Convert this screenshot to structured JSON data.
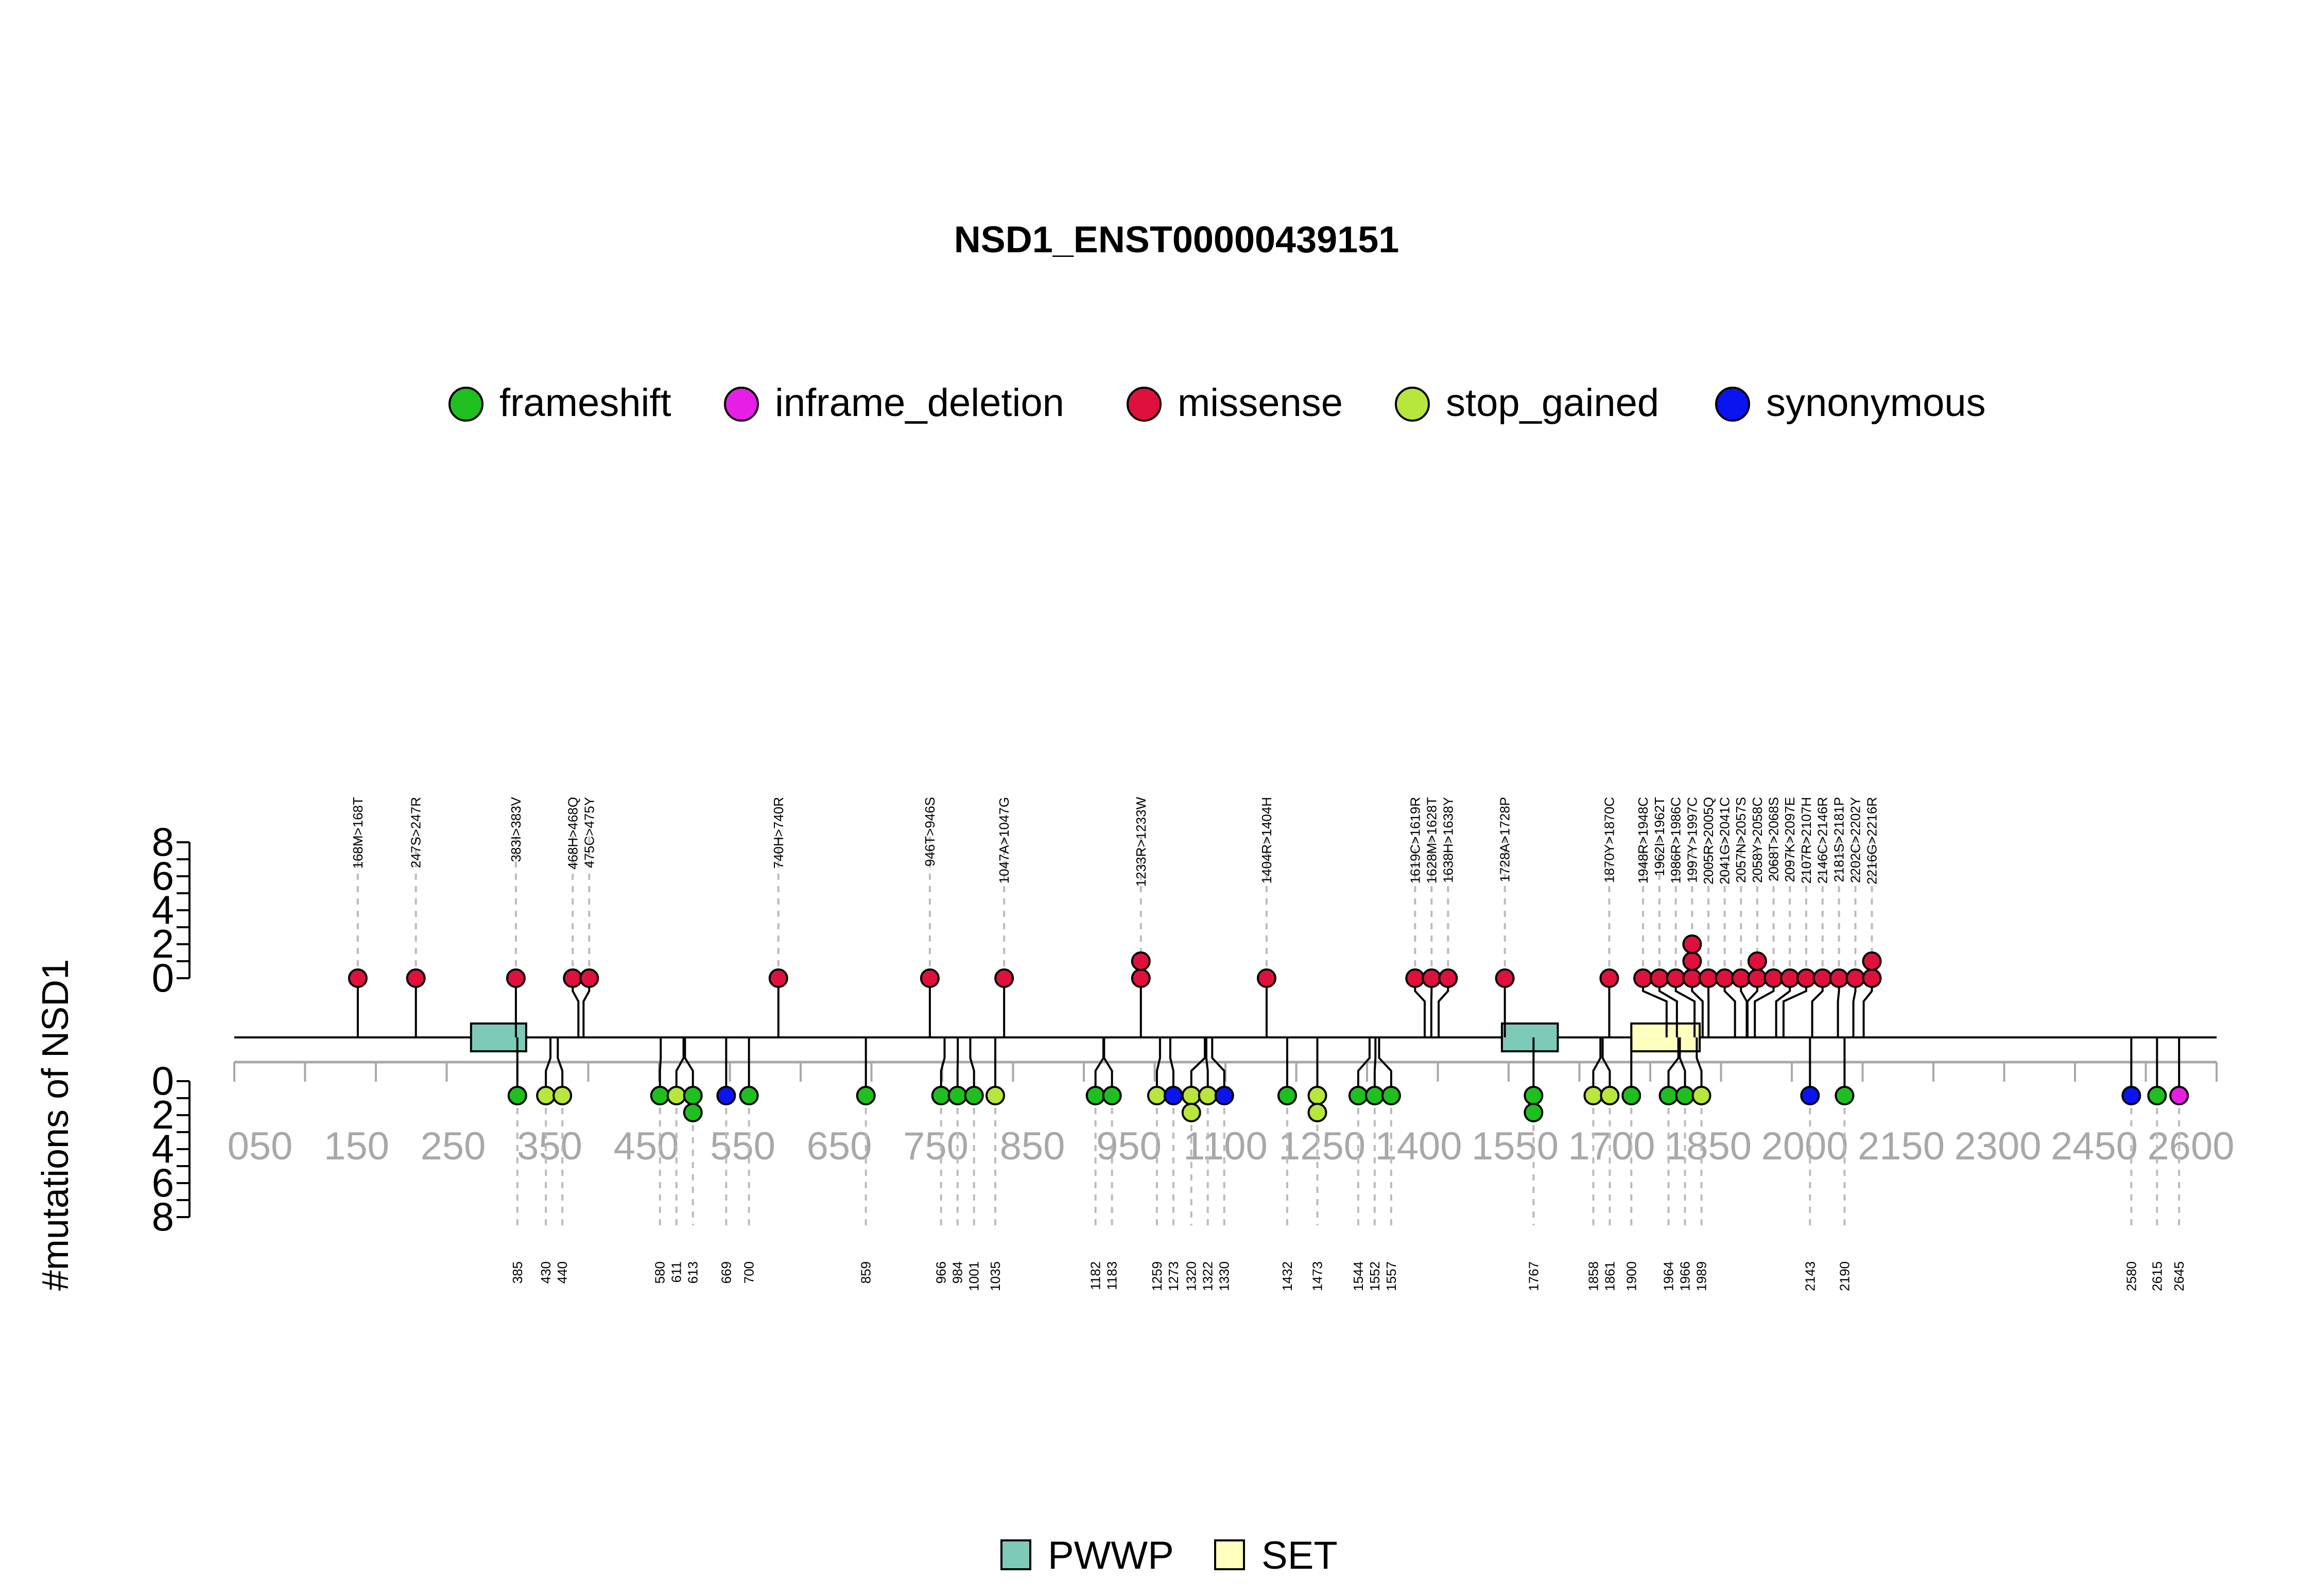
{
  "chart_data": {
    "type": "lollipop",
    "title": "NSD1_ENST00000439151",
    "ylabel": "#mutations of NSD1",
    "colors": {
      "frameshift": "#1fbf1f",
      "inframe_deletion": "#e61ee6",
      "missense": "#e0103c",
      "stop_gained": "#b7e63c",
      "synonymous": "#0a14f0",
      "PWWP": "#7ecab8",
      "SET": "#ffffbe",
      "axis_gray": "#a8a8a8"
    },
    "legend": {
      "placement": "top",
      "entries": [
        "frameshift",
        "inframe_deletion",
        "missense",
        "stop_gained",
        "synonymous"
      ]
    },
    "domain_legend": {
      "placement": "bottom",
      "entries": [
        "PWWP",
        "SET"
      ]
    },
    "domains": [
      {
        "name": "PWWP",
        "start": 322,
        "end": 397
      },
      {
        "name": "PWWP",
        "start": 1724,
        "end": 1800
      },
      {
        "name": "SET",
        "start": 1900,
        "end": 1993
      }
    ],
    "protein_length": 2696,
    "x_ticks_shown": [
      "050",
      "150",
      "250",
      "350",
      "450",
      "550",
      "650",
      "750",
      "850",
      "950",
      "1100",
      "1250",
      "1400",
      "1550",
      "1700",
      "1850",
      "2000",
      "2150",
      "2300",
      "2450",
      "2600"
    ],
    "y_top": {
      "ticks": [
        "0",
        "2",
        "4",
        "6",
        "8"
      ],
      "range": [
        0,
        8
      ]
    },
    "y_bottom": {
      "ticks": [
        "0",
        "2",
        "4",
        "6",
        "8"
      ],
      "range": [
        0,
        8
      ]
    },
    "top_mutations": [
      {
        "label": "168M>168T",
        "pos": 168,
        "types": [
          "missense"
        ]
      },
      {
        "label": "247S>247R",
        "pos": 247,
        "types": [
          "missense"
        ]
      },
      {
        "label": "383I>383V",
        "pos": 383,
        "types": [
          "missense"
        ]
      },
      {
        "label": "468H>468Q",
        "pos": 468,
        "types": [
          "missense"
        ]
      },
      {
        "label": "475C>475Y",
        "pos": 475,
        "types": [
          "missense"
        ]
      },
      {
        "label": "740H>740R",
        "pos": 740,
        "types": [
          "missense"
        ]
      },
      {
        "label": "946T>946S",
        "pos": 946,
        "types": [
          "missense"
        ]
      },
      {
        "label": "1047A>1047G",
        "pos": 1047,
        "types": [
          "missense"
        ]
      },
      {
        "label": "1233R>1233W",
        "pos": 1233,
        "types": [
          "missense",
          "missense"
        ]
      },
      {
        "label": "1404R>1404H",
        "pos": 1404,
        "types": [
          "missense"
        ]
      },
      {
        "label": "1619C>1619R",
        "pos": 1619,
        "types": [
          "missense"
        ]
      },
      {
        "label": "1628M>1628T",
        "pos": 1628,
        "types": [
          "missense"
        ]
      },
      {
        "label": "1638H>1638Y",
        "pos": 1638,
        "types": [
          "missense"
        ]
      },
      {
        "label": "1728A>1728P",
        "pos": 1728,
        "types": [
          "missense"
        ]
      },
      {
        "label": "1870Y>1870C",
        "pos": 1870,
        "types": [
          "missense"
        ]
      },
      {
        "label": "1948R>1948C",
        "pos": 1948,
        "types": [
          "missense"
        ]
      },
      {
        "label": "1962I>1962T",
        "pos": 1962,
        "types": [
          "missense"
        ]
      },
      {
        "label": "1986R>1986C",
        "pos": 1986,
        "types": [
          "missense"
        ]
      },
      {
        "label": "1997Y>1997C",
        "pos": 1997,
        "types": [
          "missense",
          "missense",
          "missense"
        ]
      },
      {
        "label": "2005R>2005Q",
        "pos": 2005,
        "types": [
          "missense"
        ]
      },
      {
        "label": "2041G>2041C",
        "pos": 2041,
        "types": [
          "missense"
        ]
      },
      {
        "label": "2057N>2057S",
        "pos": 2057,
        "types": [
          "missense"
        ]
      },
      {
        "label": "2058Y>2058C",
        "pos": 2058,
        "types": [
          "missense",
          "missense"
        ]
      },
      {
        "label": "2068T>2068S",
        "pos": 2068,
        "types": [
          "missense"
        ]
      },
      {
        "label": "2097K>2097E",
        "pos": 2097,
        "types": [
          "missense"
        ]
      },
      {
        "label": "2107R>2107H",
        "pos": 2107,
        "types": [
          "missense"
        ]
      },
      {
        "label": "2146C>2146R",
        "pos": 2146,
        "types": [
          "missense"
        ]
      },
      {
        "label": "2181S>2181P",
        "pos": 2181,
        "types": [
          "missense"
        ]
      },
      {
        "label": "2202C>2202Y",
        "pos": 2202,
        "types": [
          "missense"
        ]
      },
      {
        "label": "2216G>2216R",
        "pos": 2216,
        "types": [
          "missense",
          "missense"
        ]
      }
    ],
    "bottom_mutations": [
      {
        "label": "385",
        "pos": 385,
        "types": [
          "frameshift"
        ]
      },
      {
        "label": "430",
        "pos": 430,
        "types": [
          "stop_gained"
        ]
      },
      {
        "label": "440",
        "pos": 440,
        "types": [
          "stop_gained"
        ]
      },
      {
        "label": "580",
        "pos": 580,
        "types": [
          "frameshift"
        ]
      },
      {
        "label": "611",
        "pos": 611,
        "types": [
          "stop_gained"
        ]
      },
      {
        "label": "613",
        "pos": 613,
        "types": [
          "frameshift",
          "frameshift"
        ]
      },
      {
        "label": "669",
        "pos": 669,
        "types": [
          "synonymous"
        ]
      },
      {
        "label": "700",
        "pos": 700,
        "types": [
          "frameshift"
        ]
      },
      {
        "label": "859",
        "pos": 859,
        "types": [
          "frameshift"
        ]
      },
      {
        "label": "966",
        "pos": 966,
        "types": [
          "frameshift"
        ]
      },
      {
        "label": "984",
        "pos": 984,
        "types": [
          "frameshift"
        ]
      },
      {
        "label": "1001",
        "pos": 1001,
        "types": [
          "frameshift"
        ]
      },
      {
        "label": "1035",
        "pos": 1035,
        "types": [
          "stop_gained"
        ]
      },
      {
        "label": "1182",
        "pos": 1182,
        "types": [
          "frameshift"
        ]
      },
      {
        "label": "1183",
        "pos": 1183,
        "types": [
          "frameshift"
        ]
      },
      {
        "label": "1259",
        "pos": 1259,
        "types": [
          "stop_gained"
        ]
      },
      {
        "label": "1273",
        "pos": 1273,
        "types": [
          "synonymous"
        ]
      },
      {
        "label": "1320",
        "pos": 1320,
        "types": [
          "stop_gained",
          "stop_gained"
        ]
      },
      {
        "label": "1322",
        "pos": 1322,
        "types": [
          "stop_gained"
        ]
      },
      {
        "label": "1330",
        "pos": 1330,
        "types": [
          "synonymous"
        ]
      },
      {
        "label": "1432",
        "pos": 1432,
        "types": [
          "frameshift"
        ]
      },
      {
        "label": "1473",
        "pos": 1473,
        "types": [
          "stop_gained",
          "stop_gained"
        ]
      },
      {
        "label": "1544",
        "pos": 1544,
        "types": [
          "frameshift"
        ]
      },
      {
        "label": "1552",
        "pos": 1552,
        "types": [
          "frameshift"
        ]
      },
      {
        "label": "1557",
        "pos": 1557,
        "types": [
          "frameshift"
        ]
      },
      {
        "label": "1767",
        "pos": 1767,
        "types": [
          "frameshift",
          "frameshift"
        ]
      },
      {
        "label": "1858",
        "pos": 1858,
        "types": [
          "stop_gained"
        ]
      },
      {
        "label": "1861",
        "pos": 1861,
        "types": [
          "stop_gained"
        ]
      },
      {
        "label": "1900",
        "pos": 1900,
        "types": [
          "frameshift"
        ]
      },
      {
        "label": "1964",
        "pos": 1964,
        "types": [
          "frameshift"
        ]
      },
      {
        "label": "1966",
        "pos": 1966,
        "types": [
          "frameshift"
        ]
      },
      {
        "label": "1989",
        "pos": 1989,
        "types": [
          "stop_gained"
        ]
      },
      {
        "label": "2143",
        "pos": 2143,
        "types": [
          "synonymous"
        ]
      },
      {
        "label": "2190",
        "pos": 2190,
        "types": [
          "frameshift"
        ]
      },
      {
        "label": "2580",
        "pos": 2580,
        "types": [
          "synonymous"
        ]
      },
      {
        "label": "2615",
        "pos": 2615,
        "types": [
          "frameshift"
        ]
      },
      {
        "label": "2645",
        "pos": 2645,
        "types": [
          "inframe_deletion"
        ]
      }
    ]
  }
}
